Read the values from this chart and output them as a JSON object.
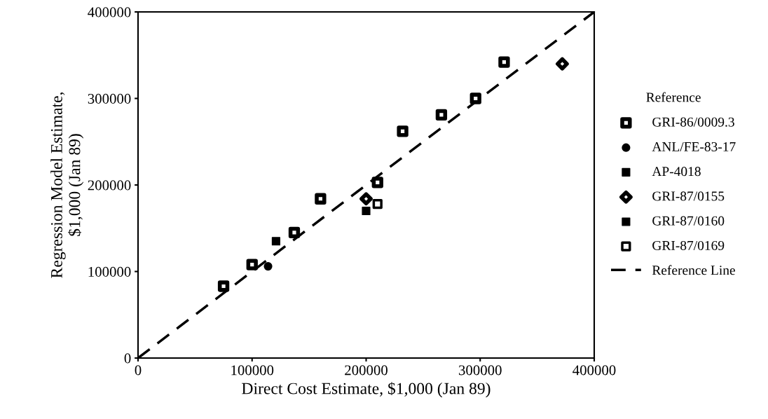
{
  "chart_data": {
    "type": "scatter",
    "xlabel": "Direct Cost Estimate, $1,000 (Jan 89)",
    "ylabel": "Regression Model Estimate,\n$1,000 (Jan 89)",
    "legend_title": "Reference",
    "legend": "right",
    "grid": false,
    "xlim": [
      0,
      400000
    ],
    "ylim": [
      0,
      400000
    ],
    "xticks": [
      0,
      100000,
      200000,
      300000,
      400000
    ],
    "yticks": [
      0,
      100000,
      200000,
      300000,
      400000
    ],
    "series": [
      {
        "name": "GRI-86/0009.3",
        "color": "#000000",
        "marker": "square",
        "x": [
          75000,
          100000,
          137000,
          160000,
          210000,
          232000,
          266000,
          296000,
          321000
        ],
        "values": [
          83000,
          108000,
          145000,
          184000,
          203000,
          262000,
          281000,
          300000,
          342000
        ]
      },
      {
        "name": "ANL/FE-83-17",
        "color": "#000000",
        "marker": "circle",
        "x": [
          114000
        ],
        "values": [
          106000
        ]
      },
      {
        "name": "AP-4018",
        "color": "#000000",
        "marker": "square",
        "x": [
          121000
        ],
        "values": [
          135000
        ]
      },
      {
        "name": "GRI-87/0155",
        "color": "#000000",
        "marker": "diamond",
        "x": [
          200000,
          372000
        ],
        "values": [
          184000,
          340000
        ]
      },
      {
        "name": "GRI-87/0160",
        "color": "#000000",
        "marker": "square",
        "x": [
          200000
        ],
        "values": [
          170000
        ]
      },
      {
        "name": "GRI-87/0169",
        "color": "#000000",
        "marker": "square",
        "x": [
          210000
        ],
        "values": [
          178000
        ]
      },
      {
        "name": "Reference Line",
        "type": "line",
        "color": "#000000",
        "line_style": "dashed",
        "marker": "none",
        "x": [
          0,
          400000
        ],
        "values": [
          0,
          400000
        ]
      }
    ]
  }
}
